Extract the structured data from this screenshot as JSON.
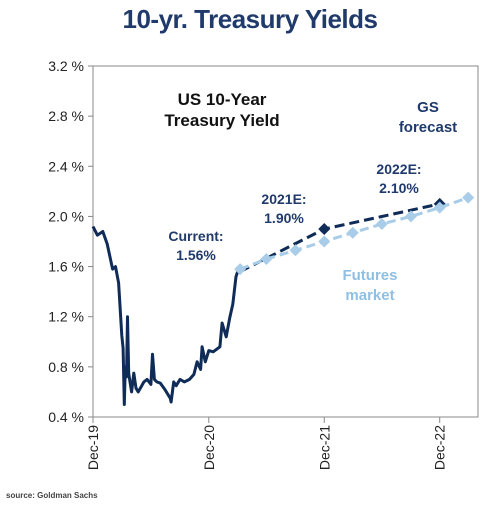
{
  "page_title": "10-yr. Treasury Yields",
  "source": "source: Goldman Sachs",
  "colors": {
    "title": "#1f3a6b",
    "history": "#0f2b57",
    "gs_forecast": "#0f2b57",
    "futures": "#a9cde8",
    "futures_label": "#8fc0e3",
    "text": "#1f3a6b"
  },
  "chart_data": {
    "type": "line",
    "title": "US 10-Year Treasury Yield",
    "xlabel": "",
    "ylabel": "",
    "y_ticks": [
      "0.4 %",
      "0.8 %",
      "1.2 %",
      "1.6 %",
      "2.0 %",
      "2.4 %",
      "2.8 %",
      "3.2 %"
    ],
    "ylim": [
      0.4,
      3.2
    ],
    "x_ticks": [
      "Dec-19",
      "Dec-20",
      "Dec-21",
      "Dec-22"
    ],
    "xlim": [
      "2019-12",
      "2023-04"
    ],
    "grid": false,
    "series": [
      {
        "key": "history",
        "style": "solid",
        "points": [
          [
            "2019-12-01",
            1.92
          ],
          [
            "2019-12-15",
            1.85
          ],
          [
            "2020-01-01",
            1.88
          ],
          [
            "2020-01-15",
            1.78
          ],
          [
            "2020-02-01",
            1.58
          ],
          [
            "2020-02-10",
            1.6
          ],
          [
            "2020-02-20",
            1.47
          ],
          [
            "2020-03-01",
            1.05
          ],
          [
            "2020-03-05",
            0.95
          ],
          [
            "2020-03-09",
            0.5
          ],
          [
            "2020-03-12",
            0.8
          ],
          [
            "2020-03-16",
            0.72
          ],
          [
            "2020-03-19",
            1.2
          ],
          [
            "2020-03-23",
            0.75
          ],
          [
            "2020-03-27",
            0.68
          ],
          [
            "2020-04-01",
            0.6
          ],
          [
            "2020-04-08",
            0.75
          ],
          [
            "2020-04-15",
            0.63
          ],
          [
            "2020-04-22",
            0.6
          ],
          [
            "2020-05-01",
            0.64
          ],
          [
            "2020-05-10",
            0.68
          ],
          [
            "2020-05-20",
            0.7
          ],
          [
            "2020-06-01",
            0.66
          ],
          [
            "2020-06-06",
            0.9
          ],
          [
            "2020-06-12",
            0.7
          ],
          [
            "2020-06-20",
            0.68
          ],
          [
            "2020-07-01",
            0.67
          ],
          [
            "2020-07-15",
            0.62
          ],
          [
            "2020-08-01",
            0.55
          ],
          [
            "2020-08-04",
            0.52
          ],
          [
            "2020-08-12",
            0.68
          ],
          [
            "2020-08-20",
            0.65
          ],
          [
            "2020-09-01",
            0.7
          ],
          [
            "2020-09-15",
            0.68
          ],
          [
            "2020-10-01",
            0.7
          ],
          [
            "2020-10-15",
            0.74
          ],
          [
            "2020-10-25",
            0.84
          ],
          [
            "2020-11-05",
            0.78
          ],
          [
            "2020-11-10",
            0.96
          ],
          [
            "2020-11-20",
            0.84
          ],
          [
            "2020-12-01",
            0.93
          ],
          [
            "2020-12-15",
            0.92
          ],
          [
            "2021-01-05",
            0.96
          ],
          [
            "2021-01-12",
            1.15
          ],
          [
            "2021-01-25",
            1.04
          ],
          [
            "2021-02-05",
            1.19
          ],
          [
            "2021-02-15",
            1.3
          ],
          [
            "2021-02-25",
            1.52
          ],
          [
            "2021-03-05",
            1.58
          ],
          [
            "2021-03-10",
            1.56
          ]
        ]
      },
      {
        "key": "gs",
        "style": "dashed",
        "points": [
          [
            "2021-03-10",
            1.56
          ],
          [
            "2021-12-01",
            1.9
          ],
          [
            "2022-12-01",
            2.1
          ]
        ]
      },
      {
        "key": "futures",
        "style": "dashed-diamond",
        "points": [
          [
            "2021-03-10",
            1.58
          ],
          [
            "2021-06-01",
            1.66
          ],
          [
            "2021-09-01",
            1.73
          ],
          [
            "2021-12-01",
            1.8
          ],
          [
            "2022-03-01",
            1.87
          ],
          [
            "2022-06-01",
            1.94
          ],
          [
            "2022-09-01",
            2.0
          ],
          [
            "2022-12-01",
            2.07
          ],
          [
            "2023-03-01",
            2.15
          ]
        ]
      }
    ],
    "annotations": {
      "chart_title_line1": "US 10-Year",
      "chart_title_line2": "Treasury Yield",
      "gs_line1": "GS",
      "gs_line2": "forecast",
      "current_line1": "Current:",
      "current_line2": "1.56%",
      "e2021_line1": "2021E:",
      "e2021_line2": "1.90%",
      "e2022_line1": "2022E:",
      "e2022_line2": "2.10%",
      "futures_line1": "Futures",
      "futures_line2": "market"
    }
  }
}
